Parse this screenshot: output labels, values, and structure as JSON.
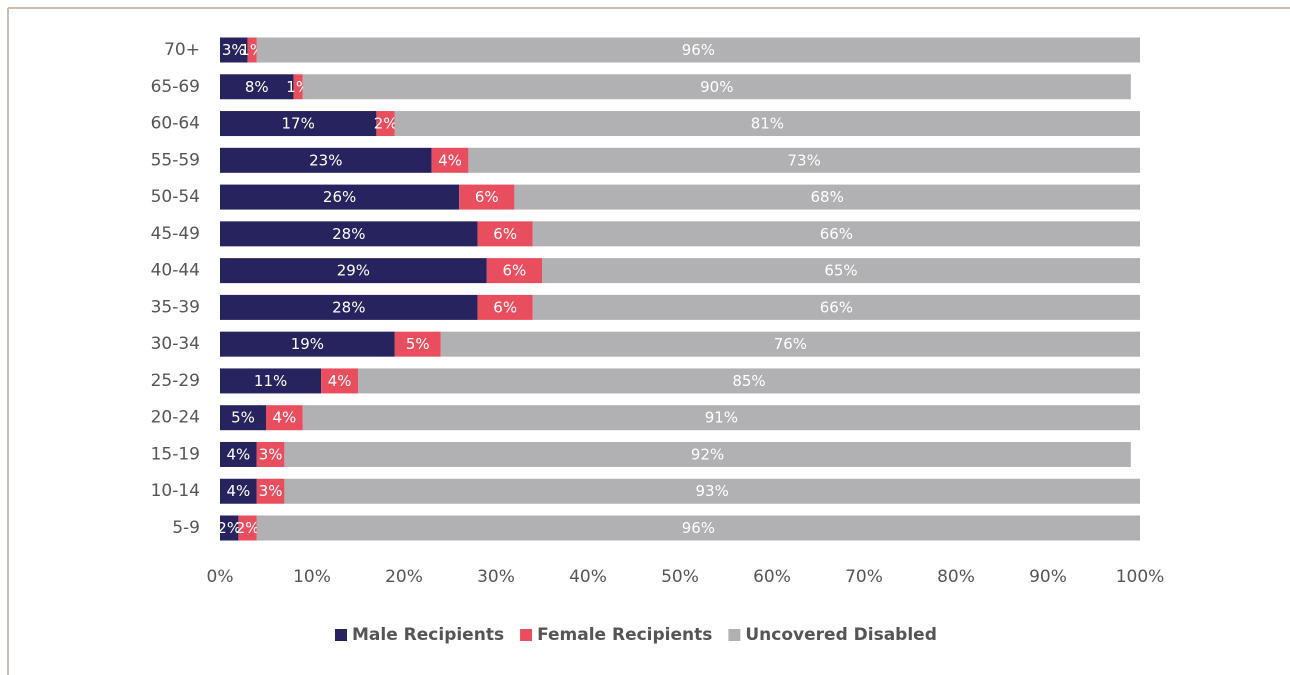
{
  "chart_data": {
    "type": "stacked-bar-horizontal",
    "categories": [
      "70+",
      "65-69",
      "60-64",
      "55-59",
      "50-54",
      "45-49",
      "40-44",
      "35-39",
      "30-34",
      "25-29",
      "20-24",
      "15-19",
      "10-14",
      "5-9"
    ],
    "series": [
      {
        "name": "Male Recipients",
        "color": "#27235e",
        "values": [
          3,
          8,
          17,
          23,
          26,
          28,
          29,
          28,
          19,
          11,
          5,
          4,
          4,
          2
        ],
        "value_labels": [
          "3%",
          "8%",
          "17%",
          "23%",
          "26%",
          "28%",
          "29%",
          "28%",
          "19%",
          "11%",
          "5%",
          "4%",
          "4%",
          "2%"
        ]
      },
      {
        "name": "Female Recipients",
        "color": "#e94e5f",
        "values": [
          1,
          1,
          2,
          4,
          6,
          6,
          6,
          6,
          5,
          4,
          4,
          3,
          3,
          2
        ],
        "value_labels": [
          "1%",
          "1%",
          "2%",
          "4%",
          "6%",
          "6%",
          "6%",
          "6%",
          "5%",
          "4%",
          "4%",
          "3%",
          "3%",
          "2%"
        ]
      },
      {
        "name": "Uncovered Disabled",
        "color": "#b1b1b3",
        "values": [
          96,
          90,
          81,
          73,
          68,
          66,
          65,
          66,
          76,
          85,
          91,
          92,
          93,
          96
        ],
        "value_labels": [
          "96%",
          "90%",
          "81%",
          "73%",
          "68%",
          "66%",
          "65%",
          "66%",
          "76%",
          "85%",
          "91%",
          "92%",
          "93%",
          "96%"
        ]
      }
    ],
    "xlim": [
      0,
      100
    ],
    "xticks": [
      {
        "value": 0,
        "label": "0%"
      },
      {
        "value": 10,
        "label": "10%"
      },
      {
        "value": 20,
        "label": "20%"
      },
      {
        "value": 30,
        "label": "30%"
      },
      {
        "value": 40,
        "label": "40%"
      },
      {
        "value": 50,
        "label": "50%"
      },
      {
        "value": 60,
        "label": "60%"
      },
      {
        "value": 70,
        "label": "70%"
      },
      {
        "value": 80,
        "label": "80%"
      },
      {
        "value": 90,
        "label": "90%"
      },
      {
        "value": 100,
        "label": "100%"
      }
    ],
    "legend": "bottom"
  }
}
